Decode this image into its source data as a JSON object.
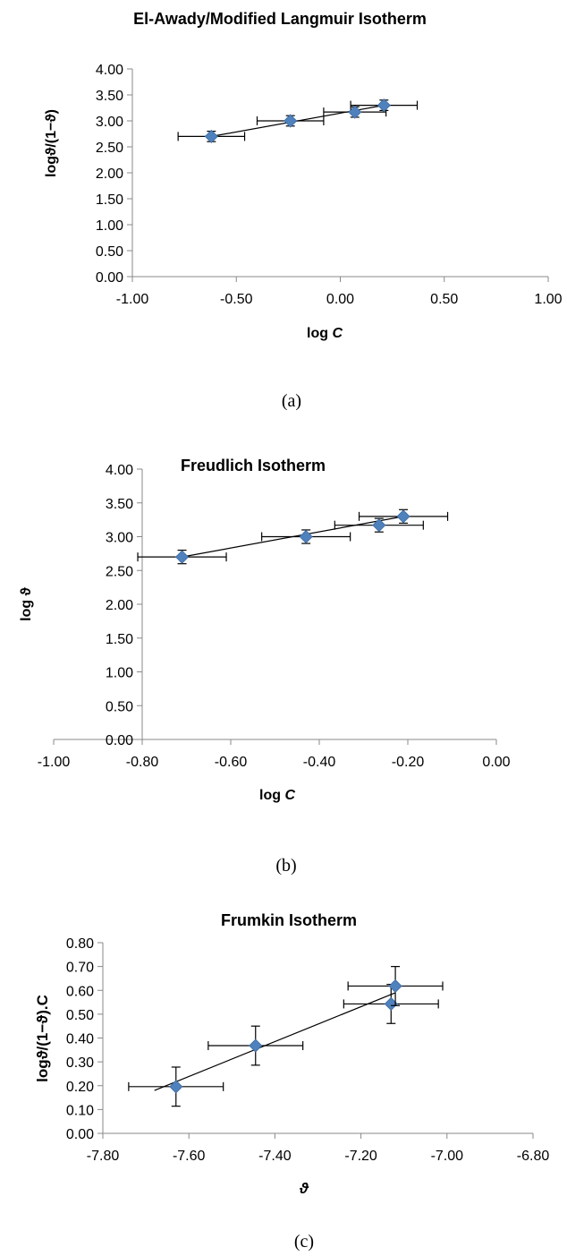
{
  "charts": [
    {
      "caption": "(a)",
      "chart_data": {
        "type": "scatter",
        "title": "El-Awady/Modified Langmuir Isotherm",
        "xlabel": "log ",
        "xlabel_italic": "C",
        "ylabel": "log⁡ϑ/(1−ϑ)",
        "xlim": [
          -1.0,
          1.0
        ],
        "ylim": [
          0.0,
          4.0
        ],
        "x_ticks": [
          "-1.00",
          "-0.50",
          "0.00",
          "0.50",
          "1.00"
        ],
        "y_ticks": [
          "0.00",
          "0.50",
          "1.00",
          "1.50",
          "2.00",
          "2.50",
          "3.00",
          "3.50",
          "4.00"
        ],
        "marker_color": "#4f81bd",
        "points": [
          {
            "x": -0.62,
            "y": 2.7,
            "xerr": 0.16,
            "yerr": 0.1
          },
          {
            "x": -0.24,
            "y": 3.0,
            "xerr": 0.16,
            "yerr": 0.1
          },
          {
            "x": 0.07,
            "y": 3.17,
            "xerr": 0.15,
            "yerr": 0.1
          },
          {
            "x": 0.21,
            "y": 3.3,
            "xerr": 0.16,
            "yerr": 0.1
          }
        ],
        "fit": {
          "x": [
            -0.62,
            0.21
          ],
          "y": [
            2.7,
            3.3
          ]
        }
      }
    },
    {
      "caption": "(b)",
      "chart_data": {
        "type": "scatter",
        "title": "Freudlich Isotherm",
        "xlabel": "log ",
        "xlabel_italic": "C",
        "ylabel": "log ϑ",
        "xlim": [
          -1.0,
          0.0
        ],
        "ylim": [
          0.0,
          4.0
        ],
        "x_ticks": [
          "-1.00",
          "-0.80",
          "-0.60",
          "-0.40",
          "-0.20",
          "0.00"
        ],
        "y_ticks": [
          "0.00",
          "0.50",
          "1.00",
          "1.50",
          "2.00",
          "2.50",
          "3.00",
          "3.50",
          "4.00"
        ],
        "marker_color": "#4f81bd",
        "points": [
          {
            "x": -0.71,
            "y": 2.7,
            "xerr": 0.1,
            "yerr": 0.1
          },
          {
            "x": -0.43,
            "y": 3.0,
            "xerr": 0.1,
            "yerr": 0.1
          },
          {
            "x": -0.265,
            "y": 3.17,
            "xerr": 0.1,
            "yerr": 0.1
          },
          {
            "x": -0.21,
            "y": 3.3,
            "xerr": 0.1,
            "yerr": 0.1
          }
        ],
        "fit": {
          "x": [
            -0.71,
            -0.21
          ],
          "y": [
            2.7,
            3.3
          ]
        }
      }
    },
    {
      "caption": "(c)",
      "chart_data": {
        "type": "scatter",
        "title": "Frumkin Isotherm",
        "xlabel": "ϑ",
        "xlabel_italic": "",
        "ylabel": "log⁡ϑ/(1−ϑ).C",
        "xlim": [
          -7.8,
          -6.8
        ],
        "ylim": [
          0.0,
          0.8
        ],
        "x_ticks": [
          "-7.80",
          "-7.60",
          "-7.40",
          "-7.20",
          "-7.00",
          "-6.80"
        ],
        "y_ticks": [
          "0.00",
          "0.10",
          "0.20",
          "0.30",
          "0.40",
          "0.50",
          "0.60",
          "0.70",
          "0.80"
        ],
        "marker_color": "#4f81bd",
        "points": [
          {
            "x": -7.63,
            "y": 0.196,
            "xerr": 0.11,
            "yerr": 0.082
          },
          {
            "x": -7.445,
            "y": 0.368,
            "xerr": 0.11,
            "yerr": 0.082
          },
          {
            "x": -7.13,
            "y": 0.543,
            "xerr": 0.11,
            "yerr": 0.082
          },
          {
            "x": -7.12,
            "y": 0.618,
            "xerr": 0.11,
            "yerr": 0.082
          }
        ],
        "fit": {
          "x": [
            -7.68,
            -7.12
          ],
          "y": [
            0.18,
            0.59
          ]
        }
      }
    }
  ]
}
